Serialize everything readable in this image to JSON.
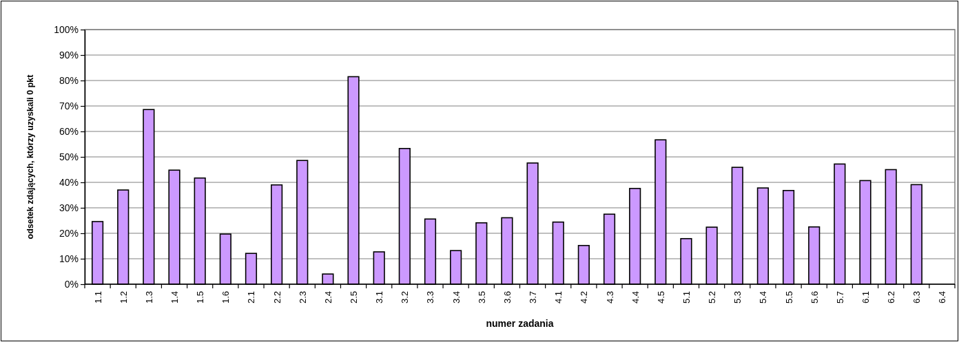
{
  "chart_data": {
    "type": "bar",
    "xlabel": "numer zadania",
    "ylabel": "odsetek zdających, którzy uzyskali 0 pkt",
    "categories": [
      "1.1",
      "1.2",
      "1.3",
      "1.4",
      "1.5",
      "1.6",
      "2.1",
      "2.2",
      "2.3",
      "2.4",
      "2.5",
      "3.1",
      "3.2",
      "3.3",
      "3.4",
      "3.5",
      "3.6",
      "3.7",
      "4.1",
      "4.2",
      "4.3",
      "4.4",
      "4.5",
      "5.1",
      "5.2",
      "5.3",
      "5.4",
      "5.5",
      "5.6",
      "5.7",
      "6.1",
      "6.2",
      "6.3",
      "6.4"
    ],
    "values": [
      24.6,
      37.0,
      68.6,
      44.8,
      41.7,
      19.7,
      12.1,
      39.0,
      48.6,
      4.0,
      81.5,
      12.7,
      53.3,
      25.6,
      13.2,
      24.1,
      26.1,
      47.6,
      24.4,
      15.2,
      27.5,
      37.6,
      56.7,
      17.9,
      22.4,
      45.9,
      37.8,
      36.8,
      22.5,
      47.2,
      40.7,
      45.0,
      39.1,
      null
    ],
    "color": "#cc99ff",
    "ylim": [
      0,
      100
    ],
    "yticks": [
      {
        "value": 0,
        "label": "0%"
      },
      {
        "value": 10,
        "label": "10%"
      },
      {
        "value": 20,
        "label": "20%"
      },
      {
        "value": 30,
        "label": "30%"
      },
      {
        "value": 40,
        "label": "40%"
      },
      {
        "value": 50,
        "label": "50%"
      },
      {
        "value": 60,
        "label": "60%"
      },
      {
        "value": 70,
        "label": "70%"
      },
      {
        "value": 80,
        "label": "80%"
      },
      {
        "value": 90,
        "label": "90%"
      },
      {
        "value": 100,
        "label": "100%"
      }
    ],
    "grid": "y"
  }
}
